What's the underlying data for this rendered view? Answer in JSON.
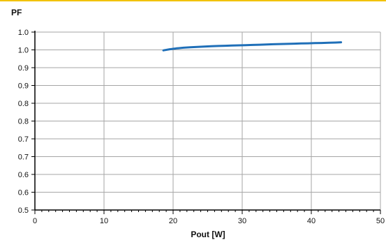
{
  "colors": {
    "accent_rule": "#f2c200",
    "series": "#1f6fb8",
    "grid": "#a6a6a6",
    "axis": "#000000"
  },
  "chart_data": {
    "type": "line",
    "title": "",
    "ylabel": "PF",
    "xlabel": "Pout [W]",
    "xlim": [
      0,
      50
    ],
    "ylim": [
      0.5,
      1.0
    ],
    "grid": true,
    "x_ticks": [
      0,
      10,
      20,
      30,
      40,
      50
    ],
    "x_tick_labels": [
      "0",
      "10",
      "20",
      "30",
      "40",
      "50"
    ],
    "y_ticks": [
      0.5,
      0.55,
      0.6,
      0.65,
      0.7,
      0.75,
      0.8,
      0.85,
      0.9,
      0.95,
      1.0
    ],
    "y_tick_labels": [
      "0.5",
      "0.6",
      "0.6",
      "0.7",
      "0.7",
      "0.8",
      "0.8",
      "0.9",
      "0.9",
      "1.0",
      "1.0"
    ],
    "series": [
      {
        "x": [
          18.6,
          19.5,
          20.5,
          21.5,
          22.5,
          23.5,
          24.5,
          25.5,
          26.5,
          27.5,
          28.5,
          29.5,
          30.5,
          31.5,
          32.5,
          33.5,
          34.5,
          35.5,
          36.5,
          37.5,
          38.5,
          39.5,
          40.5,
          41.5,
          42.5,
          43.5,
          44.3
        ],
        "values": [
          0.9486,
          0.9518,
          0.9544,
          0.956,
          0.9574,
          0.9585,
          0.9594,
          0.9602,
          0.9609,
          0.9616,
          0.9622,
          0.9628,
          0.9634,
          0.964,
          0.9646,
          0.9652,
          0.9658,
          0.9664,
          0.9669,
          0.9675,
          0.968,
          0.9685,
          0.969,
          0.9695,
          0.97,
          0.9705,
          0.9714
        ]
      }
    ]
  }
}
